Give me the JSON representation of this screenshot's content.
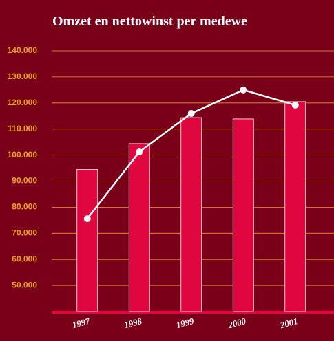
{
  "chart_data": {
    "type": "bar",
    "title": "Omzet en nettowinst per medewe",
    "categories": [
      "1997",
      "1998",
      "1999",
      "2000",
      "2001"
    ],
    "series": [
      {
        "type": "bar",
        "color": "#e0063f",
        "values": [
          94500,
          104400,
          114400,
          113900,
          120500
        ]
      },
      {
        "type": "line",
        "color": "#ffffff",
        "values": [
          75600,
          101200,
          116000,
          125000,
          119200
        ]
      }
    ],
    "ylim": [
      40000,
      140000
    ],
    "yticks": [
      {
        "value": 50000,
        "label": "50.000"
      },
      {
        "value": 60000,
        "label": "60.000"
      },
      {
        "value": 70000,
        "label": "70.000"
      },
      {
        "value": 80000,
        "label": "80.000"
      },
      {
        "value": 90000,
        "label": "90.000"
      },
      {
        "value": 100000,
        "label": "100.000"
      },
      {
        "value": 110000,
        "label": "110.000"
      },
      {
        "value": 120000,
        "label": "120.000"
      },
      {
        "value": 130000,
        "label": "130.000"
      },
      {
        "value": 140000,
        "label": "140.000"
      }
    ],
    "grid": true
  }
}
